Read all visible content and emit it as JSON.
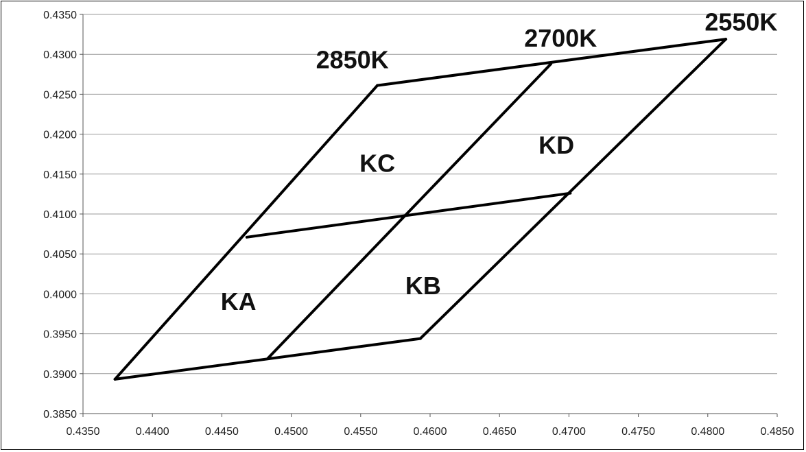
{
  "chart_data": {
    "type": "line",
    "title": "",
    "xlabel": "",
    "ylabel": "",
    "xlim": [
      0.435,
      0.485
    ],
    "ylim": [
      0.385,
      0.435
    ],
    "x_ticks": [
      "0.4350",
      "0.4400",
      "0.4450",
      "0.4500",
      "0.4550",
      "0.4600",
      "0.4650",
      "0.4700",
      "0.4750",
      "0.4800",
      "0.4850"
    ],
    "y_ticks": [
      "0.4350",
      "0.4300",
      "0.4250",
      "0.4200",
      "0.4150",
      "0.4100",
      "0.4050",
      "0.4000",
      "0.3950",
      "0.3900",
      "0.3850"
    ],
    "grid": "horizontal",
    "series": [
      {
        "points": [
          [
            0.4373,
            0.3893
          ],
          [
            0.4562,
            0.4261
          ]
        ]
      },
      {
        "points": [
          [
            0.4483,
            0.3919
          ],
          [
            0.4687,
            0.4288
          ]
        ]
      },
      {
        "points": [
          [
            0.4593,
            0.3944
          ],
          [
            0.4813,
            0.4319
          ]
        ]
      },
      {
        "points": [
          [
            0.4562,
            0.4261
          ],
          [
            0.4813,
            0.4319
          ]
        ]
      },
      {
        "points": [
          [
            0.4373,
            0.3893
          ],
          [
            0.4593,
            0.3944
          ]
        ]
      },
      {
        "points": [
          [
            0.4468,
            0.4071
          ],
          [
            0.4701,
            0.4126
          ]
        ]
      }
    ],
    "annotations": [
      {
        "text": "2850K",
        "x": 0.4544,
        "y": 0.4293
      },
      {
        "text": "2700K",
        "x": 0.4694,
        "y": 0.432
      },
      {
        "text": "2550K",
        "x": 0.4824,
        "y": 0.434
      },
      {
        "text": "KC",
        "x": 0.4562,
        "y": 0.4163
      },
      {
        "text": "KD",
        "x": 0.4691,
        "y": 0.4186
      },
      {
        "text": "KA",
        "x": 0.4462,
        "y": 0.399
      },
      {
        "text": "KB",
        "x": 0.4595,
        "y": 0.401
      }
    ],
    "colors": {
      "line": "#000000",
      "grid": "#999999",
      "axis": "#555555"
    }
  }
}
